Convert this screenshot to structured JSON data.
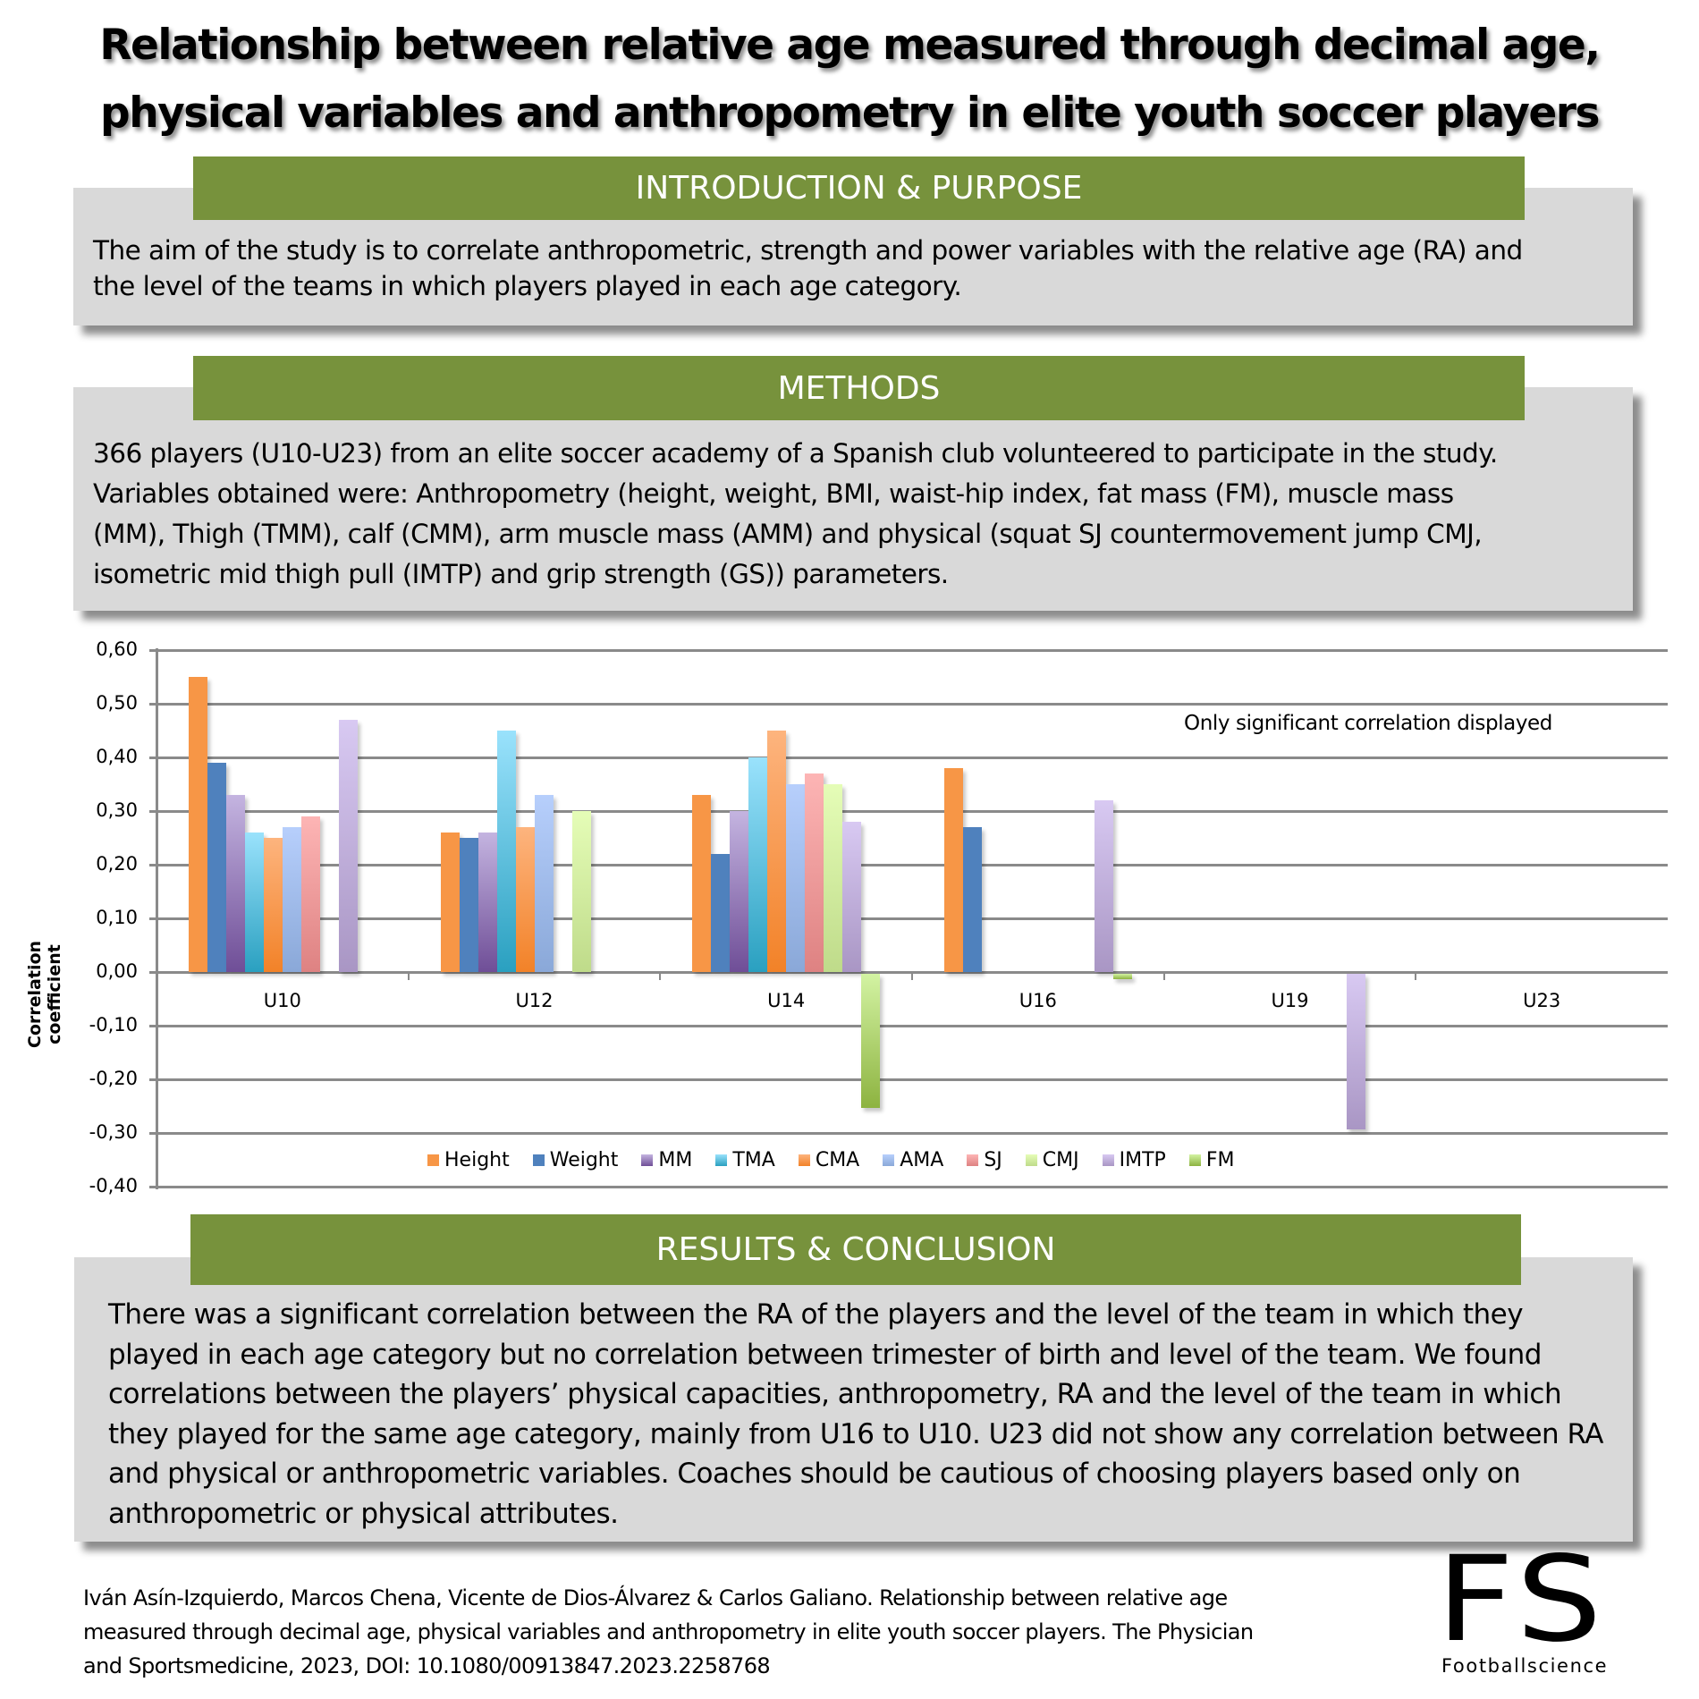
{
  "title": {
    "line1": "Relationship between relative age measured through decimal age,",
    "line2": "physical variables and anthropometry in elite youth soccer players"
  },
  "colors": {
    "header_green": "#77923c",
    "box_gray": "#d9d9d9",
    "gridline": "#8a8a8a"
  },
  "introduction": {
    "header": "INTRODUCTION & PURPOSE",
    "lines": [
      "The aim of the study is to correlate anthropometric, strength and power variables with the relative age (RA) and",
      "the level of the teams in which players played in each age category."
    ]
  },
  "methods": {
    "header": "METHODS",
    "lines": [
      "366 players (U10-U23) from an elite soccer academy of a Spanish club volunteered to participate in the study.",
      "Variables obtained were: Anthropometry (height, weight, BMI, waist-hip index, fat mass (FM), muscle mass",
      "(MM), Thigh (TMM), calf (CMM), arm muscle mass (AMM) and physical (squat SJ countermovement jump CMJ,",
      "isometric mid thigh pull (IMTP) and grip strength (GS)) parameters."
    ]
  },
  "results": {
    "header": "RESULTS & CONCLUSION",
    "lines": [
      "There was a significant correlation between the RA of the players and the level of the team in which they",
      "played in each age category but no correlation between trimester of birth and level of the team. We found",
      "correlations between the players’ physical capacities, anthropometry, RA and the level of the team in which",
      "they played for the same age category, mainly from U16 to U10. U23 did not show any correlation between RA",
      "and physical or anthropometric variables. Coaches should be cautious of choosing players based only on",
      "anthropometric or physical attributes."
    ]
  },
  "footer": {
    "lines": [
      "Iván Asín-Izquierdo, Marcos Chena, Vicente de Dios-Álvarez & Carlos Galiano. Relationship between relative age",
      "measured through decimal age, physical variables and anthropometry in elite youth soccer players. The Physician",
      "and Sportsmedicine, 2023, DOI: 10.1080/00913847.2023.2258768"
    ],
    "logo_mark": "FS",
    "logo_text": "Footballscience"
  },
  "chart_data": {
    "type": "bar",
    "title": "",
    "annotation": "Only significant correlation displayed",
    "xlabel": "",
    "ylabel": "Correlation coefficient",
    "ylim": [
      -0.4,
      0.6
    ],
    "yticks": [
      "0,60",
      "0,50",
      "0,40",
      "0,30",
      "0,20",
      "0,10",
      "0,00",
      "-0,10",
      "-0,20",
      "-0,30",
      "-0,40"
    ],
    "grid": true,
    "legend_position": "bottom",
    "categories": [
      "U10",
      "U12",
      "U14",
      "U16",
      "U19",
      "U23"
    ],
    "series": [
      {
        "name": "Height",
        "color": "#f79646",
        "values": [
          0.55,
          0.26,
          0.33,
          0.38,
          null,
          null
        ]
      },
      {
        "name": "Weight",
        "color": "#4f81bd",
        "values": [
          0.39,
          0.25,
          0.22,
          0.27,
          null,
          null
        ]
      },
      {
        "name": "MM",
        "color": "#8064a2",
        "values": [
          0.33,
          0.26,
          0.3,
          null,
          null,
          null
        ]
      },
      {
        "name": "TMA",
        "color": "#4bacc6",
        "values": [
          0.26,
          0.45,
          0.4,
          null,
          null,
          null
        ]
      },
      {
        "name": "CMA",
        "color": "#f79646",
        "values": [
          0.25,
          0.27,
          0.45,
          null,
          null,
          null
        ]
      },
      {
        "name": "AMA",
        "color": "#95b3d7",
        "values": [
          0.27,
          0.33,
          0.35,
          null,
          null,
          null
        ]
      },
      {
        "name": "SJ",
        "color": "#e6a0a0",
        "values": [
          0.29,
          null,
          0.37,
          null,
          null,
          null
        ]
      },
      {
        "name": "CMJ",
        "color": "#d7e4bd",
        "values": [
          null,
          0.3,
          0.35,
          null,
          null,
          null
        ]
      },
      {
        "name": "IMTP",
        "color": "#b3a2c7",
        "values": [
          0.47,
          null,
          0.28,
          0.32,
          -0.29,
          null
        ]
      },
      {
        "name": "FM",
        "color": "#9bbb59",
        "values": [
          null,
          null,
          -0.25,
          -0.01,
          null,
          null
        ]
      }
    ],
    "series_gradients": [
      [
        "#f79646",
        "#f79646"
      ],
      [
        "#4f81bd",
        "#4f81bd"
      ],
      [
        "#c4b4e0",
        "#6f4e97"
      ],
      [
        "#9ae2fc",
        "#2aa0c0"
      ],
      [
        "#fdb47e",
        "#f28228"
      ],
      [
        "#b7cffc",
        "#8aa8d8"
      ],
      [
        "#fdb5b5",
        "#de8282"
      ],
      [
        "#e5fdb7",
        "#bfdb8a"
      ],
      [
        "#d8c9f2",
        "#a996c4"
      ],
      [
        "#d3f3a3",
        "#8db340"
      ]
    ]
  }
}
